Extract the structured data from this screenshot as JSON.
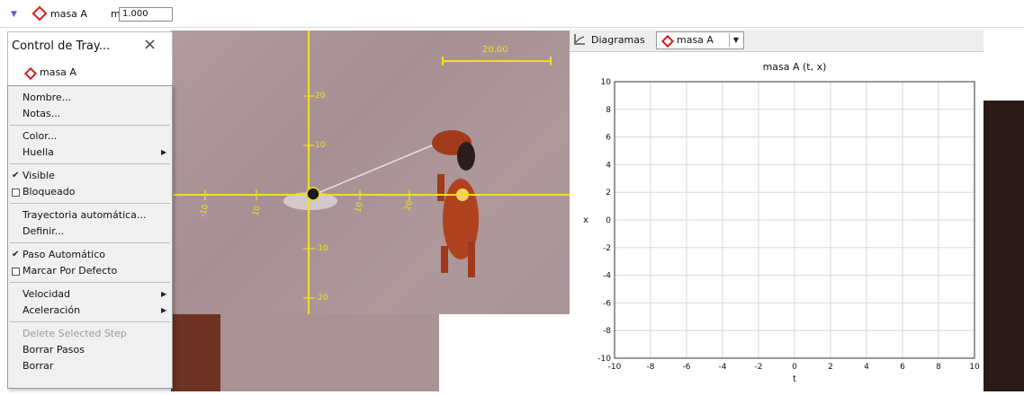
{
  "toolbar": {
    "track_name": "masa A",
    "mass_label": "m",
    "mass_value": "1.000"
  },
  "tracking_panel": {
    "title": "Control de Tray...",
    "close_glyph": "×",
    "track_name": "masa A"
  },
  "video": {
    "scale_label": "20.00",
    "axis_ticks": {
      "y_positive": [
        "20",
        "10"
      ],
      "y_negative": [
        "-10",
        "-20"
      ],
      "x_negative": [
        "-10",
        "10"
      ],
      "x_positive": [
        "10",
        "20"
      ]
    }
  },
  "menu": {
    "items": [
      {
        "label": "Nombre..."
      },
      {
        "label": "Notas..."
      },
      {
        "label": "Color..."
      },
      {
        "label": "Huella",
        "submenu": true
      },
      {
        "label": "Visible",
        "checked": true
      },
      {
        "label": "Bloqueado",
        "checked": false
      },
      {
        "label": "Trayectoria automática..."
      },
      {
        "label": "Definir..."
      },
      {
        "label": "Paso Automático",
        "checked": true
      },
      {
        "label": "Marcar Por Defecto",
        "checked": false
      },
      {
        "label": "Velocidad",
        "submenu": true
      },
      {
        "label": "Aceleración",
        "submenu": true
      },
      {
        "label": "Delete Selected Step",
        "disabled": true
      },
      {
        "label": "Borrar Pasos"
      },
      {
        "label": "Borrar"
      }
    ]
  },
  "diagram": {
    "tab_label": "Diagramas",
    "selected_track": "masa A",
    "plot_title": "masa A (t, x)",
    "x_axis_label": "t",
    "y_axis_label": "x",
    "x_ticks": [
      "-10",
      "-8",
      "-6",
      "-4",
      "-2",
      "0",
      "2",
      "4",
      "6",
      "8",
      "10"
    ],
    "y_ticks": [
      "10",
      "8",
      "6",
      "4",
      "2",
      "0",
      "-2",
      "-4",
      "-6",
      "-8",
      "-10"
    ]
  },
  "colors": {
    "accent_track": "#d02020",
    "axis_yellow": "#f0e020"
  }
}
